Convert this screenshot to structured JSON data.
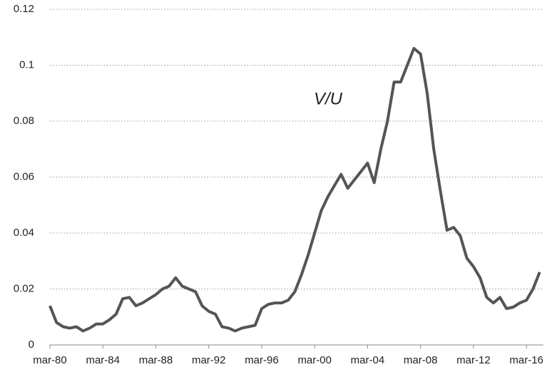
{
  "chart_data": {
    "type": "line",
    "annotation": "V/U",
    "categories": [
      "mar-80",
      null,
      null,
      null,
      null,
      null,
      null,
      null,
      "mar-84",
      null,
      null,
      null,
      null,
      null,
      null,
      null,
      "mar-88",
      null,
      null,
      null,
      null,
      null,
      null,
      null,
      "mar-92",
      null,
      null,
      null,
      null,
      null,
      null,
      null,
      "mar-96",
      null,
      null,
      null,
      null,
      null,
      null,
      null,
      "mar-00",
      null,
      null,
      null,
      null,
      null,
      null,
      null,
      "mar-04",
      null,
      null,
      null,
      null,
      null,
      null,
      null,
      "mar-08",
      null,
      null,
      null,
      null,
      null,
      null,
      null,
      "mar-12",
      null,
      null,
      null,
      null,
      null,
      null,
      null,
      "mar-16",
      null,
      null
    ],
    "series": [
      {
        "name": "V/U",
        "color": "#555555",
        "values": [
          0.014,
          0.008,
          0.0065,
          0.006,
          0.0065,
          0.005,
          0.006,
          0.0075,
          0.0075,
          0.009,
          0.011,
          0.0165,
          0.017,
          0.014,
          0.015,
          0.0165,
          0.018,
          0.02,
          0.021,
          0.024,
          0.021,
          0.02,
          0.019,
          0.014,
          0.012,
          0.011,
          0.0065,
          0.006,
          0.005,
          0.006,
          0.0065,
          0.007,
          0.013,
          0.0145,
          0.015,
          0.015,
          0.016,
          0.019,
          0.025,
          0.032,
          0.04,
          0.048,
          0.053,
          0.057,
          0.061,
          0.056,
          0.059,
          0.062,
          0.065,
          0.058,
          0.07,
          0.08,
          0.094,
          0.094,
          0.1,
          0.106,
          0.104,
          0.09,
          0.07,
          0.055,
          0.041,
          0.042,
          0.039,
          0.031,
          0.028,
          0.024,
          0.017,
          0.015,
          0.017,
          0.013,
          0.0135,
          0.015,
          0.016,
          0.02,
          0.026
        ]
      }
    ],
    "ylim": [
      0,
      0.12
    ],
    "yticks": [
      0,
      0.02,
      0.04,
      0.06,
      0.08,
      0.1,
      0.12
    ],
    "grid": true
  }
}
